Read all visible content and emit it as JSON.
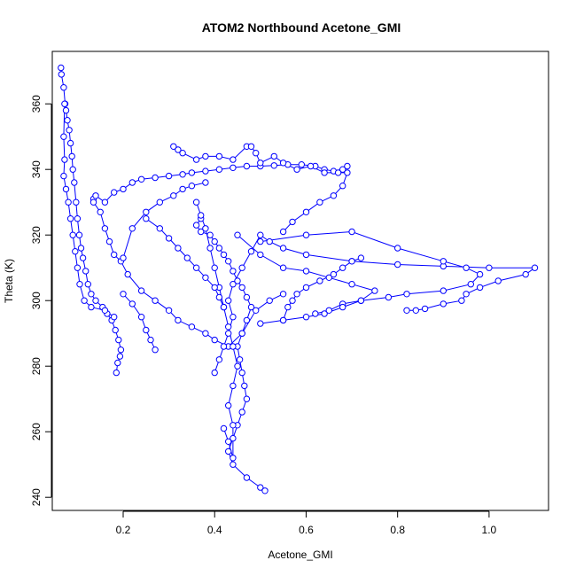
{
  "chart_data": {
    "type": "line",
    "title": "ATOM2 Northbound Acetone_GMI",
    "xlabel": "Acetone_GMI",
    "ylabel": "Theta (K)",
    "xlim": [
      0.045,
      1.13
    ],
    "ylim": [
      236,
      376
    ],
    "xticks": [
      0.2,
      0.4,
      0.6,
      0.8,
      1.0
    ],
    "xtick_labels": [
      "0.2",
      "0.4",
      "0.6",
      "0.8",
      "1.0"
    ],
    "yticks": [
      240,
      260,
      280,
      300,
      320,
      340,
      360
    ],
    "ytick_labels": [
      "240",
      "260",
      "280",
      "300",
      "320",
      "340",
      "360"
    ],
    "marker": "open-circle",
    "color": "#0000ff",
    "grid": false,
    "series": [
      {
        "values": [
          [
            0.064,
            371
          ],
          [
            0.065,
            369
          ],
          [
            0.07,
            365
          ],
          [
            0.073,
            360
          ],
          [
            0.075,
            358
          ],
          [
            0.078,
            355
          ],
          [
            0.082,
            352
          ],
          [
            0.085,
            348
          ],
          [
            0.088,
            344
          ],
          [
            0.09,
            340
          ],
          [
            0.093,
            336
          ],
          [
            0.097,
            330
          ],
          [
            0.1,
            325
          ],
          [
            0.104,
            320
          ],
          [
            0.108,
            316
          ],
          [
            0.112,
            313
          ],
          [
            0.118,
            309
          ],
          [
            0.123,
            305
          ],
          [
            0.13,
            302
          ],
          [
            0.14,
            300
          ],
          [
            0.155,
            298
          ],
          [
            0.165,
            296
          ],
          [
            0.175,
            294
          ],
          [
            0.183,
            291
          ],
          [
            0.19,
            288
          ],
          [
            0.195,
            285
          ],
          [
            0.193,
            283
          ],
          [
            0.188,
            281
          ],
          [
            0.185,
            278
          ]
        ]
      },
      {
        "values": [
          [
            0.072,
            360
          ],
          [
            0.07,
            350
          ],
          [
            0.072,
            343
          ],
          [
            0.07,
            338
          ],
          [
            0.075,
            334
          ],
          [
            0.08,
            330
          ],
          [
            0.085,
            325
          ],
          [
            0.09,
            320
          ],
          [
            0.095,
            315
          ],
          [
            0.1,
            310
          ],
          [
            0.105,
            305
          ],
          [
            0.115,
            300
          ],
          [
            0.13,
            298
          ],
          [
            0.16,
            297
          ],
          [
            0.18,
            295
          ]
        ]
      },
      {
        "values": [
          [
            0.135,
            331
          ],
          [
            0.14,
            332
          ],
          [
            0.16,
            330
          ],
          [
            0.18,
            333
          ],
          [
            0.2,
            334
          ],
          [
            0.22,
            336
          ],
          [
            0.24,
            337
          ],
          [
            0.27,
            337.5
          ],
          [
            0.3,
            338
          ],
          [
            0.33,
            338.5
          ],
          [
            0.35,
            339
          ],
          [
            0.38,
            339.5
          ],
          [
            0.41,
            340
          ],
          [
            0.44,
            340.5
          ],
          [
            0.47,
            341
          ],
          [
            0.5,
            341
          ],
          [
            0.53,
            341.2
          ],
          [
            0.56,
            341.5
          ],
          [
            0.59,
            341.5
          ],
          [
            0.62,
            341
          ],
          [
            0.64,
            340
          ],
          [
            0.66,
            339.5
          ],
          [
            0.68,
            340
          ],
          [
            0.69,
            341
          ]
        ]
      },
      {
        "values": [
          [
            0.135,
            330
          ],
          [
            0.15,
            327
          ],
          [
            0.16,
            322
          ],
          [
            0.17,
            318
          ],
          [
            0.18,
            314
          ],
          [
            0.195,
            312
          ],
          [
            0.21,
            308
          ],
          [
            0.24,
            303
          ],
          [
            0.27,
            300
          ],
          [
            0.3,
            297
          ],
          [
            0.32,
            294
          ],
          [
            0.35,
            292
          ],
          [
            0.38,
            290
          ],
          [
            0.4,
            288
          ],
          [
            0.43,
            286
          ],
          [
            0.46,
            290
          ],
          [
            0.49,
            297
          ],
          [
            0.52,
            300
          ],
          [
            0.55,
            302
          ]
        ]
      },
      {
        "values": [
          [
            0.31,
            347
          ],
          [
            0.32,
            346
          ],
          [
            0.33,
            345
          ],
          [
            0.36,
            343
          ],
          [
            0.38,
            344
          ],
          [
            0.41,
            344
          ],
          [
            0.44,
            343
          ],
          [
            0.47,
            347
          ],
          [
            0.48,
            347
          ],
          [
            0.49,
            345
          ],
          [
            0.5,
            342
          ],
          [
            0.53,
            344
          ],
          [
            0.55,
            342
          ],
          [
            0.58,
            340
          ],
          [
            0.61,
            341
          ],
          [
            0.64,
            339
          ],
          [
            0.67,
            339
          ],
          [
            0.69,
            339
          ],
          [
            0.68,
            335
          ],
          [
            0.66,
            332
          ],
          [
            0.63,
            330
          ],
          [
            0.6,
            327
          ],
          [
            0.57,
            324
          ],
          [
            0.55,
            321
          ]
        ]
      },
      {
        "values": [
          [
            0.37,
            325
          ],
          [
            0.36,
            323
          ],
          [
            0.37,
            321
          ],
          [
            0.39,
            320
          ],
          [
            0.4,
            318
          ],
          [
            0.41,
            316
          ],
          [
            0.42,
            314
          ],
          [
            0.43,
            312
          ],
          [
            0.44,
            309
          ],
          [
            0.45,
            306
          ],
          [
            0.46,
            304
          ],
          [
            0.47,
            301
          ],
          [
            0.48,
            298
          ],
          [
            0.47,
            294
          ],
          [
            0.46,
            290
          ],
          [
            0.45,
            286
          ],
          [
            0.455,
            282
          ],
          [
            0.46,
            278
          ],
          [
            0.465,
            274
          ],
          [
            0.47,
            270
          ],
          [
            0.46,
            266
          ],
          [
            0.45,
            262
          ],
          [
            0.44,
            258
          ],
          [
            0.43,
            254
          ],
          [
            0.44,
            250
          ],
          [
            0.47,
            246
          ],
          [
            0.5,
            243
          ],
          [
            0.51,
            242
          ]
        ]
      },
      {
        "values": [
          [
            0.42,
            261
          ],
          [
            0.43,
            257
          ],
          [
            0.44,
            252
          ],
          [
            0.44,
            262
          ],
          [
            0.43,
            268
          ],
          [
            0.44,
            274
          ],
          [
            0.45,
            280
          ],
          [
            0.44,
            286
          ],
          [
            0.43,
            292
          ],
          [
            0.42,
            298
          ],
          [
            0.41,
            304
          ],
          [
            0.4,
            310
          ],
          [
            0.39,
            316
          ],
          [
            0.38,
            322
          ],
          [
            0.37,
            326
          ],
          [
            0.36,
            330
          ]
        ]
      },
      {
        "values": [
          [
            0.4,
            278
          ],
          [
            0.41,
            282
          ],
          [
            0.42,
            286
          ],
          [
            0.43,
            290
          ],
          [
            0.44,
            295
          ],
          [
            0.43,
            300
          ],
          [
            0.44,
            305
          ],
          [
            0.46,
            310
          ],
          [
            0.48,
            315
          ],
          [
            0.5,
            320
          ],
          [
            0.52,
            318
          ],
          [
            0.55,
            316
          ],
          [
            0.6,
            314
          ],
          [
            0.7,
            312
          ],
          [
            0.8,
            311
          ],
          [
            0.9,
            310.5
          ],
          [
            1.0,
            310
          ],
          [
            1.1,
            310
          ],
          [
            1.08,
            308
          ],
          [
            1.02,
            306
          ],
          [
            0.98,
            304
          ],
          [
            0.95,
            302
          ],
          [
            0.94,
            300
          ],
          [
            0.9,
            299
          ],
          [
            0.86,
            297.5
          ],
          [
            0.84,
            297
          ],
          [
            0.82,
            297
          ]
        ]
      },
      {
        "values": [
          [
            0.5,
            318
          ],
          [
            0.6,
            320
          ],
          [
            0.7,
            321
          ],
          [
            0.8,
            316
          ],
          [
            0.9,
            312
          ],
          [
            0.95,
            310
          ],
          [
            0.98,
            308
          ],
          [
            0.96,
            305
          ],
          [
            0.9,
            303
          ],
          [
            0.82,
            302
          ],
          [
            0.78,
            301
          ],
          [
            0.72,
            300
          ],
          [
            0.68,
            299
          ],
          [
            0.65,
            297
          ],
          [
            0.62,
            296
          ]
        ]
      },
      {
        "values": [
          [
            0.45,
            320
          ],
          [
            0.5,
            314
          ],
          [
            0.55,
            310
          ],
          [
            0.6,
            309
          ],
          [
            0.65,
            307
          ],
          [
            0.7,
            305
          ],
          [
            0.75,
            303
          ],
          [
            0.72,
            300
          ],
          [
            0.68,
            298
          ],
          [
            0.64,
            296
          ],
          [
            0.6,
            295
          ],
          [
            0.55,
            294
          ],
          [
            0.5,
            293
          ]
        ]
      },
      {
        "values": [
          [
            0.2,
            313
          ],
          [
            0.22,
            322
          ],
          [
            0.25,
            327
          ],
          [
            0.28,
            330
          ],
          [
            0.31,
            332
          ],
          [
            0.33,
            334
          ],
          [
            0.35,
            335
          ],
          [
            0.38,
            336
          ]
        ]
      },
      {
        "values": [
          [
            0.2,
            302
          ],
          [
            0.22,
            299
          ],
          [
            0.24,
            295
          ],
          [
            0.25,
            291
          ],
          [
            0.26,
            288
          ],
          [
            0.27,
            285
          ]
        ]
      },
      {
        "values": [
          [
            0.55,
            294
          ],
          [
            0.56,
            298
          ],
          [
            0.57,
            300
          ],
          [
            0.58,
            302
          ],
          [
            0.6,
            304
          ],
          [
            0.63,
            306
          ],
          [
            0.66,
            308
          ],
          [
            0.68,
            310
          ],
          [
            0.7,
            312
          ],
          [
            0.72,
            313
          ]
        ]
      },
      {
        "values": [
          [
            0.25,
            325
          ],
          [
            0.28,
            322
          ],
          [
            0.3,
            319
          ],
          [
            0.32,
            316
          ],
          [
            0.34,
            313
          ],
          [
            0.36,
            310
          ],
          [
            0.38,
            307
          ],
          [
            0.4,
            304
          ],
          [
            0.41,
            301
          ],
          [
            0.42,
            298
          ]
        ]
      }
    ]
  }
}
